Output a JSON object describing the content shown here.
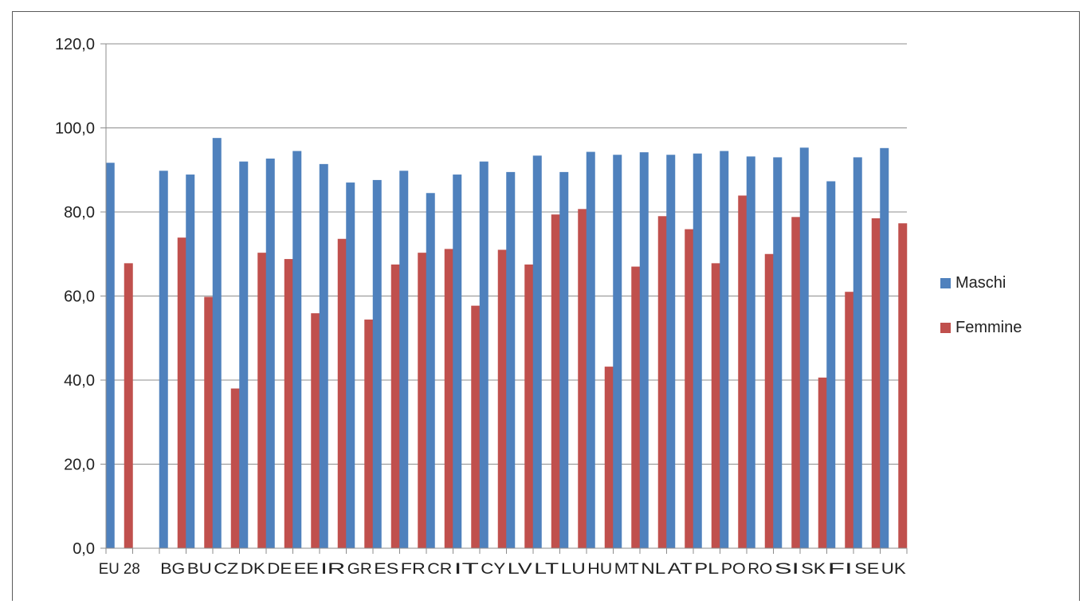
{
  "chart_data": {
    "type": "bar",
    "title": "",
    "xlabel": "",
    "ylabel": "",
    "ylim": [
      0,
      120
    ],
    "yticks": [
      "0,0",
      "20,0",
      "40,0",
      "60,0",
      "80,0",
      "100,0",
      "120,0"
    ],
    "grid": true,
    "legend_position": "right",
    "categories": [
      "EU 28",
      "",
      "BG",
      "BU",
      "CZ",
      "DK",
      "DE",
      "EE",
      "IR",
      "GR",
      "ES",
      "FR",
      "CR",
      "IT",
      "CY",
      "LV",
      "LT",
      "LU",
      "HU",
      "MT",
      "NL",
      "AT",
      "PL",
      "PO",
      "RO",
      "SI",
      "SK",
      "FI",
      "SE",
      "UK"
    ],
    "series": [
      {
        "name": "Maschi",
        "color": "#4f81bd",
        "values": [
          91.7,
          null,
          89.8,
          88.9,
          97.6,
          92.0,
          92.7,
          94.5,
          91.4,
          87.0,
          87.6,
          89.8,
          84.5,
          88.9,
          92.0,
          89.5,
          93.4,
          89.5,
          94.3,
          93.6,
          94.2,
          93.6,
          93.9,
          94.5,
          93.2,
          93.0,
          95.3,
          87.3,
          93.0,
          95.2
        ]
      },
      {
        "name": "Femmine",
        "color": "#c0504d",
        "values": [
          67.8,
          null,
          73.9,
          59.8,
          38.0,
          70.3,
          68.8,
          55.9,
          73.6,
          54.4,
          67.5,
          70.3,
          71.2,
          57.7,
          71.0,
          67.5,
          79.4,
          80.7,
          43.2,
          67.0,
          79.0,
          75.9,
          67.8,
          83.9,
          70.0,
          78.8,
          40.6,
          61.0,
          78.5,
          77.3
        ]
      }
    ]
  }
}
